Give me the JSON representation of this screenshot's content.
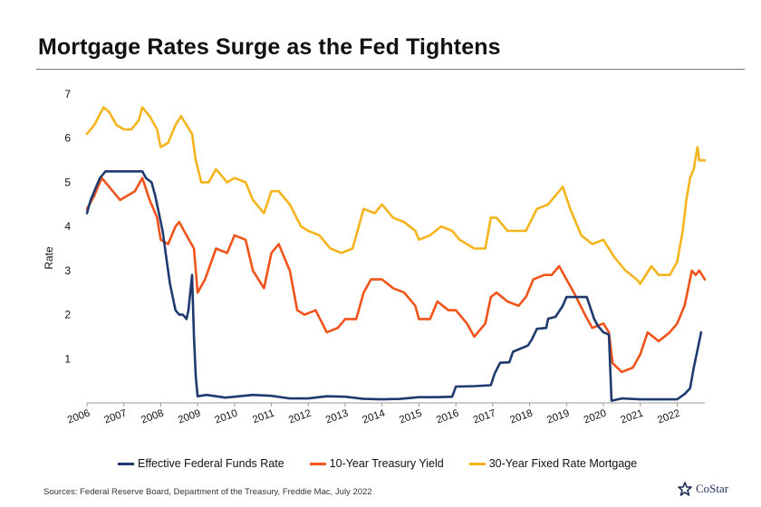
{
  "header": {
    "title": "Mortgage Rates Surge as the Fed Tightens"
  },
  "footer": {
    "source": "Sources: Federal Reserve Board, Department of the Treasury, Freddie Mac, July 2022"
  },
  "logo": {
    "text": "CoStar",
    "icon": "star-icon"
  },
  "chart_data": {
    "type": "line",
    "title": "Mortgage Rates Surge as the Fed Tightens",
    "ylabel": "Rate",
    "xlabel": "",
    "ylim": [
      0,
      7
    ],
    "yticks": [
      1,
      2,
      3,
      4,
      5,
      6,
      7
    ],
    "xlim": [
      2006,
      2022.75
    ],
    "xticks": [
      "2006",
      "2007",
      "2008",
      "2009",
      "2010",
      "2011",
      "2012",
      "2013",
      "2014",
      "2015",
      "2016",
      "2017",
      "2018",
      "2019",
      "2020",
      "2021",
      "2022"
    ],
    "grid": false,
    "legend_position": "bottom",
    "series": [
      {
        "name": "Effective Federal Funds Rate",
        "color": "#1f3a6e",
        "x": [
          2006.0,
          2006.1,
          2006.25,
          2006.35,
          2006.5,
          2006.75,
          2007.0,
          2007.25,
          2007.5,
          2007.6,
          2007.75,
          2007.85,
          2007.95,
          2008.05,
          2008.15,
          2008.25,
          2008.4,
          2008.5,
          2008.6,
          2008.7,
          2008.75,
          2008.8,
          2008.85,
          2008.9,
          2008.95,
          2009.0,
          2009.25,
          2009.5,
          2009.75,
          2010.0,
          2010.5,
          2011.0,
          2011.5,
          2012.0,
          2012.5,
          2013.0,
          2013.5,
          2014.0,
          2014.5,
          2015.0,
          2015.5,
          2015.9,
          2016.0,
          2016.5,
          2016.95,
          2017.05,
          2017.2,
          2017.45,
          2017.55,
          2017.95,
          2018.05,
          2018.2,
          2018.45,
          2018.5,
          2018.7,
          2018.9,
          2019.0,
          2019.3,
          2019.55,
          2019.65,
          2019.75,
          2019.85,
          2020.0,
          2020.15,
          2020.22,
          2020.5,
          2021.0,
          2021.5,
          2022.0,
          2022.2,
          2022.35,
          2022.45,
          2022.55,
          2022.65
        ],
        "values": [
          4.3,
          4.6,
          4.9,
          5.1,
          5.25,
          5.25,
          5.25,
          5.25,
          5.25,
          5.1,
          5.0,
          4.7,
          4.3,
          3.9,
          3.3,
          2.7,
          2.1,
          2.0,
          2.0,
          1.9,
          2.1,
          2.5,
          2.9,
          1.5,
          0.6,
          0.15,
          0.18,
          0.15,
          0.12,
          0.14,
          0.18,
          0.16,
          0.1,
          0.1,
          0.15,
          0.14,
          0.09,
          0.08,
          0.09,
          0.13,
          0.13,
          0.14,
          0.37,
          0.38,
          0.4,
          0.66,
          0.91,
          0.92,
          1.16,
          1.3,
          1.42,
          1.68,
          1.7,
          1.91,
          1.95,
          2.2,
          2.4,
          2.4,
          2.4,
          2.15,
          1.9,
          1.75,
          1.6,
          1.55,
          0.05,
          0.1,
          0.08,
          0.08,
          0.08,
          0.2,
          0.33,
          0.8,
          1.2,
          1.6
        ]
      },
      {
        "name": "10-Year Treasury Yield",
        "color": "#f0541a",
        "x": [
          2006.0,
          2006.2,
          2006.4,
          2006.5,
          2006.7,
          2006.9,
          2007.1,
          2007.3,
          2007.5,
          2007.7,
          2007.9,
          2008.0,
          2008.2,
          2008.4,
          2008.5,
          2008.7,
          2008.9,
          2009.0,
          2009.2,
          2009.5,
          2009.8,
          2010.0,
          2010.3,
          2010.5,
          2010.8,
          2011.0,
          2011.2,
          2011.5,
          2011.7,
          2011.9,
          2012.2,
          2012.5,
          2012.8,
          2013.0,
          2013.3,
          2013.5,
          2013.7,
          2014.0,
          2014.3,
          2014.6,
          2014.9,
          2015.0,
          2015.3,
          2015.5,
          2015.8,
          2016.0,
          2016.3,
          2016.5,
          2016.8,
          2016.95,
          2017.1,
          2017.4,
          2017.7,
          2017.9,
          2018.1,
          2018.4,
          2018.6,
          2018.8,
          2019.0,
          2019.2,
          2019.5,
          2019.7,
          2020.0,
          2020.15,
          2020.25,
          2020.5,
          2020.8,
          2021.0,
          2021.2,
          2021.5,
          2021.8,
          2022.0,
          2022.2,
          2022.4,
          2022.5,
          2022.6,
          2022.75
        ],
        "values": [
          4.4,
          4.7,
          5.1,
          5.0,
          4.8,
          4.6,
          4.7,
          4.8,
          5.1,
          4.6,
          4.2,
          3.7,
          3.6,
          4.0,
          4.1,
          3.8,
          3.5,
          2.5,
          2.8,
          3.5,
          3.4,
          3.8,
          3.7,
          3.0,
          2.6,
          3.4,
          3.6,
          3.0,
          2.1,
          2.0,
          2.1,
          1.6,
          1.7,
          1.9,
          1.9,
          2.5,
          2.8,
          2.8,
          2.6,
          2.5,
          2.2,
          1.9,
          1.9,
          2.3,
          2.1,
          2.1,
          1.8,
          1.5,
          1.8,
          2.4,
          2.5,
          2.3,
          2.2,
          2.4,
          2.8,
          2.9,
          2.9,
          3.1,
          2.8,
          2.5,
          2.0,
          1.7,
          1.8,
          1.6,
          0.9,
          0.7,
          0.8,
          1.1,
          1.6,
          1.4,
          1.6,
          1.8,
          2.2,
          3.0,
          2.9,
          3.0,
          2.8
        ]
      },
      {
        "name": "30-Year Fixed Rate Mortgage",
        "color": "#f5b41b",
        "x": [
          2006.0,
          2006.2,
          2006.45,
          2006.6,
          2006.8,
          2007.0,
          2007.2,
          2007.4,
          2007.5,
          2007.7,
          2007.9,
          2008.0,
          2008.2,
          2008.4,
          2008.55,
          2008.7,
          2008.85,
          2008.95,
          2009.1,
          2009.3,
          2009.5,
          2009.8,
          2010.0,
          2010.3,
          2010.5,
          2010.8,
          2011.0,
          2011.2,
          2011.5,
          2011.8,
          2012.0,
          2012.3,
          2012.6,
          2012.9,
          2013.2,
          2013.5,
          2013.8,
          2014.0,
          2014.3,
          2014.6,
          2014.9,
          2015.0,
          2015.3,
          2015.6,
          2015.9,
          2016.1,
          2016.5,
          2016.8,
          2016.95,
          2017.1,
          2017.4,
          2017.7,
          2017.9,
          2018.2,
          2018.5,
          2018.8,
          2018.9,
          2019.1,
          2019.4,
          2019.7,
          2020.0,
          2020.3,
          2020.6,
          2020.9,
          2021.0,
          2021.3,
          2021.5,
          2021.8,
          2022.0,
          2022.15,
          2022.25,
          2022.35,
          2022.45,
          2022.55,
          2022.6,
          2022.65,
          2022.75
        ],
        "values": [
          6.1,
          6.3,
          6.7,
          6.6,
          6.3,
          6.2,
          6.2,
          6.4,
          6.7,
          6.5,
          6.2,
          5.8,
          5.9,
          6.3,
          6.5,
          6.3,
          6.1,
          5.5,
          5.0,
          5.0,
          5.3,
          5.0,
          5.1,
          5.0,
          4.6,
          4.3,
          4.8,
          4.8,
          4.5,
          4.0,
          3.9,
          3.8,
          3.5,
          3.4,
          3.5,
          4.4,
          4.3,
          4.5,
          4.2,
          4.1,
          3.9,
          3.7,
          3.8,
          4.0,
          3.9,
          3.7,
          3.5,
          3.5,
          4.2,
          4.2,
          3.9,
          3.9,
          3.9,
          4.4,
          4.5,
          4.8,
          4.9,
          4.4,
          3.8,
          3.6,
          3.7,
          3.3,
          3.0,
          2.8,
          2.7,
          3.1,
          2.9,
          2.9,
          3.2,
          3.9,
          4.6,
          5.1,
          5.3,
          5.8,
          5.5,
          5.5,
          5.5
        ]
      }
    ]
  }
}
